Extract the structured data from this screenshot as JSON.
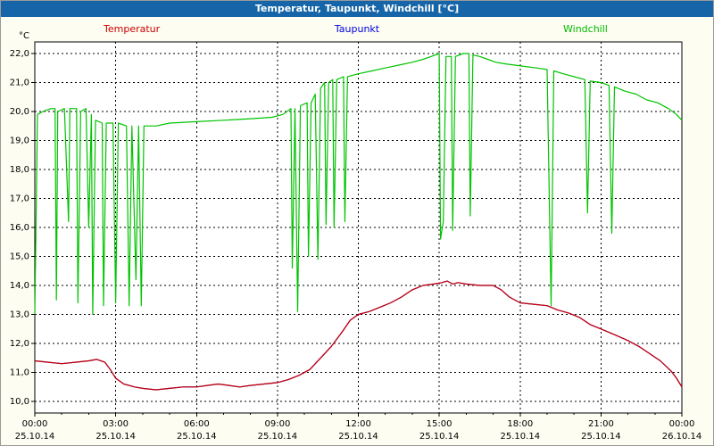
{
  "window": {
    "title": "Temperatur, Taupunkt, Windchill [°C]"
  },
  "legend": [
    {
      "label": "Temperatur",
      "color": "#cc0000"
    },
    {
      "label": "Taupunkt",
      "color": "#0000dd"
    },
    {
      "label": "Windchill",
      "color": "#00bb00"
    }
  ],
  "chart_data": {
    "type": "line",
    "title": "Temperatur, Taupunkt, Windchill [°C]",
    "unit_label": "°C",
    "grid": "dashed",
    "x_range": [
      0,
      24
    ],
    "y_range": [
      9.6,
      22.4
    ],
    "y_ticks": {
      "values": [
        10,
        11,
        12,
        13,
        14,
        15,
        16,
        17,
        18,
        19,
        20,
        21,
        22
      ],
      "labels": [
        "10,0",
        "11,0",
        "12,0",
        "13,0",
        "14,0",
        "15,0",
        "16,0",
        "17,0",
        "18,0",
        "19,0",
        "20,0",
        "21,0",
        "22,0"
      ]
    },
    "x_ticks": {
      "hours": [
        0,
        3,
        6,
        9,
        12,
        15,
        18,
        21,
        24
      ],
      "time_labels": [
        "00:00",
        "03:00",
        "06:00",
        "09:00",
        "12:00",
        "15:00",
        "18:00",
        "21:00",
        "00:00"
      ],
      "date_labels": [
        "25.10.14",
        "25.10.14",
        "25.10.14",
        "25.10.14",
        "25.10.14",
        "25.10.14",
        "25.10.14",
        "25.10.14",
        "26.10.14"
      ]
    },
    "series": [
      {
        "name": "Windchill",
        "color": "#00c400",
        "points": [
          [
            0.0,
            13.0
          ],
          [
            0.1,
            19.9
          ],
          [
            0.3,
            20.0
          ],
          [
            0.6,
            20.1
          ],
          [
            0.75,
            20.1
          ],
          [
            0.8,
            13.5
          ],
          [
            0.85,
            20.0
          ],
          [
            1.1,
            20.1
          ],
          [
            1.25,
            16.2
          ],
          [
            1.3,
            20.1
          ],
          [
            1.55,
            20.1
          ],
          [
            1.6,
            13.4
          ],
          [
            1.7,
            20.0
          ],
          [
            1.9,
            20.1
          ],
          [
            2.0,
            16.0
          ],
          [
            2.1,
            19.9
          ],
          [
            2.15,
            13.0
          ],
          [
            2.25,
            19.7
          ],
          [
            2.5,
            19.6
          ],
          [
            2.55,
            13.3
          ],
          [
            2.65,
            19.6
          ],
          [
            2.9,
            19.6
          ],
          [
            3.0,
            13.4
          ],
          [
            3.1,
            19.6
          ],
          [
            3.4,
            19.5
          ],
          [
            3.5,
            13.3
          ],
          [
            3.6,
            19.5
          ],
          [
            3.75,
            14.2
          ],
          [
            3.85,
            19.5
          ],
          [
            3.95,
            13.3
          ],
          [
            4.05,
            19.5
          ],
          [
            4.5,
            19.5
          ],
          [
            5.0,
            19.6
          ],
          [
            6.0,
            19.65
          ],
          [
            7.0,
            19.7
          ],
          [
            8.0,
            19.75
          ],
          [
            8.8,
            19.8
          ],
          [
            9.2,
            19.9
          ],
          [
            9.5,
            20.1
          ],
          [
            9.55,
            14.6
          ],
          [
            9.65,
            20.1
          ],
          [
            9.75,
            13.1
          ],
          [
            9.85,
            20.2
          ],
          [
            10.1,
            20.3
          ],
          [
            10.15,
            15.0
          ],
          [
            10.25,
            20.3
          ],
          [
            10.4,
            20.6
          ],
          [
            10.5,
            14.9
          ],
          [
            10.6,
            20.8
          ],
          [
            10.75,
            21.0
          ],
          [
            10.8,
            16.1
          ],
          [
            10.9,
            21.0
          ],
          [
            11.05,
            21.1
          ],
          [
            11.1,
            16.0
          ],
          [
            11.2,
            21.1
          ],
          [
            11.45,
            21.2
          ],
          [
            11.5,
            16.2
          ],
          [
            11.6,
            21.2
          ],
          [
            12.0,
            21.3
          ],
          [
            12.5,
            21.4
          ],
          [
            13.0,
            21.5
          ],
          [
            13.5,
            21.6
          ],
          [
            14.0,
            21.7
          ],
          [
            14.4,
            21.8
          ],
          [
            14.7,
            21.9
          ],
          [
            15.0,
            22.0
          ],
          [
            15.05,
            15.6
          ],
          [
            15.15,
            16.2
          ],
          [
            15.25,
            21.9
          ],
          [
            15.45,
            21.9
          ],
          [
            15.5,
            15.9
          ],
          [
            15.6,
            21.9
          ],
          [
            15.9,
            22.0
          ],
          [
            16.1,
            22.0
          ],
          [
            16.15,
            16.4
          ],
          [
            16.25,
            21.95
          ],
          [
            16.5,
            21.9
          ],
          [
            16.8,
            21.8
          ],
          [
            17.1,
            21.7
          ],
          [
            17.4,
            21.65
          ],
          [
            17.8,
            21.6
          ],
          [
            18.2,
            21.55
          ],
          [
            18.6,
            21.5
          ],
          [
            19.0,
            21.45
          ],
          [
            19.1,
            16.0
          ],
          [
            19.15,
            13.3
          ],
          [
            19.25,
            21.4
          ],
          [
            19.6,
            21.3
          ],
          [
            20.0,
            21.2
          ],
          [
            20.4,
            21.1
          ],
          [
            20.5,
            16.5
          ],
          [
            20.6,
            21.05
          ],
          [
            21.0,
            21.0
          ],
          [
            21.3,
            20.9
          ],
          [
            21.4,
            15.8
          ],
          [
            21.5,
            20.85
          ],
          [
            21.9,
            20.7
          ],
          [
            22.3,
            20.6
          ],
          [
            22.7,
            20.4
          ],
          [
            23.1,
            20.3
          ],
          [
            23.5,
            20.1
          ],
          [
            23.8,
            19.9
          ],
          [
            24.0,
            19.7
          ]
        ]
      },
      {
        "name": "Taupunkt",
        "color": "#0000dd",
        "points": [
          [
            0,
            11.4
          ],
          [
            0.5,
            11.35
          ],
          [
            1,
            11.3
          ],
          [
            1.5,
            11.35
          ],
          [
            2,
            11.4
          ],
          [
            2.3,
            11.45
          ],
          [
            2.6,
            11.35
          ],
          [
            2.8,
            11.1
          ],
          [
            3.0,
            10.8
          ],
          [
            3.3,
            10.6
          ],
          [
            3.7,
            10.5
          ],
          [
            4.0,
            10.45
          ],
          [
            4.5,
            10.4
          ],
          [
            5.0,
            10.45
          ],
          [
            5.5,
            10.5
          ],
          [
            6.0,
            10.5
          ],
          [
            6.4,
            10.55
          ],
          [
            6.8,
            10.6
          ],
          [
            7.2,
            10.55
          ],
          [
            7.6,
            10.5
          ],
          [
            8.0,
            10.55
          ],
          [
            8.5,
            10.6
          ],
          [
            9.0,
            10.65
          ],
          [
            9.4,
            10.75
          ],
          [
            9.8,
            10.9
          ],
          [
            10.2,
            11.1
          ],
          [
            10.6,
            11.5
          ],
          [
            11.0,
            11.9
          ],
          [
            11.4,
            12.4
          ],
          [
            11.7,
            12.8
          ],
          [
            12.0,
            13.0
          ],
          [
            12.4,
            13.1
          ],
          [
            12.8,
            13.25
          ],
          [
            13.2,
            13.4
          ],
          [
            13.6,
            13.6
          ],
          [
            14.0,
            13.85
          ],
          [
            14.4,
            14.0
          ],
          [
            14.8,
            14.05
          ],
          [
            15.1,
            14.1
          ],
          [
            15.3,
            14.15
          ],
          [
            15.5,
            14.05
          ],
          [
            15.7,
            14.1
          ],
          [
            16.0,
            14.05
          ],
          [
            16.5,
            14.0
          ],
          [
            17.0,
            14.0
          ],
          [
            17.3,
            13.85
          ],
          [
            17.6,
            13.6
          ],
          [
            18.0,
            13.4
          ],
          [
            18.5,
            13.35
          ],
          [
            19.0,
            13.3
          ],
          [
            19.4,
            13.15
          ],
          [
            19.8,
            13.05
          ],
          [
            20.2,
            12.9
          ],
          [
            20.6,
            12.65
          ],
          [
            21.0,
            12.5
          ],
          [
            21.5,
            12.3
          ],
          [
            22.0,
            12.1
          ],
          [
            22.4,
            11.9
          ],
          [
            22.8,
            11.65
          ],
          [
            23.2,
            11.4
          ],
          [
            23.6,
            11.05
          ],
          [
            23.8,
            10.8
          ],
          [
            24.0,
            10.5
          ]
        ]
      },
      {
        "name": "Temperatur",
        "color": "#cc0000",
        "points": [
          [
            0,
            11.4
          ],
          [
            0.5,
            11.35
          ],
          [
            1,
            11.3
          ],
          [
            1.5,
            11.35
          ],
          [
            2,
            11.4
          ],
          [
            2.3,
            11.45
          ],
          [
            2.6,
            11.35
          ],
          [
            2.8,
            11.1
          ],
          [
            3.0,
            10.8
          ],
          [
            3.3,
            10.6
          ],
          [
            3.7,
            10.5
          ],
          [
            4.0,
            10.45
          ],
          [
            4.5,
            10.4
          ],
          [
            5.0,
            10.45
          ],
          [
            5.5,
            10.5
          ],
          [
            6.0,
            10.5
          ],
          [
            6.4,
            10.55
          ],
          [
            6.8,
            10.6
          ],
          [
            7.2,
            10.55
          ],
          [
            7.6,
            10.5
          ],
          [
            8.0,
            10.55
          ],
          [
            8.5,
            10.6
          ],
          [
            9.0,
            10.65
          ],
          [
            9.4,
            10.75
          ],
          [
            9.8,
            10.9
          ],
          [
            10.2,
            11.1
          ],
          [
            10.6,
            11.5
          ],
          [
            11.0,
            11.9
          ],
          [
            11.4,
            12.4
          ],
          [
            11.7,
            12.8
          ],
          [
            12.0,
            13.0
          ],
          [
            12.4,
            13.1
          ],
          [
            12.8,
            13.25
          ],
          [
            13.2,
            13.4
          ],
          [
            13.6,
            13.6
          ],
          [
            14.0,
            13.85
          ],
          [
            14.4,
            14.0
          ],
          [
            14.8,
            14.05
          ],
          [
            15.1,
            14.1
          ],
          [
            15.3,
            14.15
          ],
          [
            15.5,
            14.05
          ],
          [
            15.7,
            14.1
          ],
          [
            16.0,
            14.05
          ],
          [
            16.5,
            14.0
          ],
          [
            17.0,
            14.0
          ],
          [
            17.3,
            13.85
          ],
          [
            17.6,
            13.6
          ],
          [
            18.0,
            13.4
          ],
          [
            18.5,
            13.35
          ],
          [
            19.0,
            13.3
          ],
          [
            19.4,
            13.15
          ],
          [
            19.8,
            13.05
          ],
          [
            20.2,
            12.9
          ],
          [
            20.6,
            12.65
          ],
          [
            21.0,
            12.5
          ],
          [
            21.5,
            12.3
          ],
          [
            22.0,
            12.1
          ],
          [
            22.4,
            11.9
          ],
          [
            22.8,
            11.65
          ],
          [
            23.2,
            11.4
          ],
          [
            23.6,
            11.05
          ],
          [
            23.8,
            10.8
          ],
          [
            24.0,
            10.5
          ]
        ]
      }
    ]
  }
}
